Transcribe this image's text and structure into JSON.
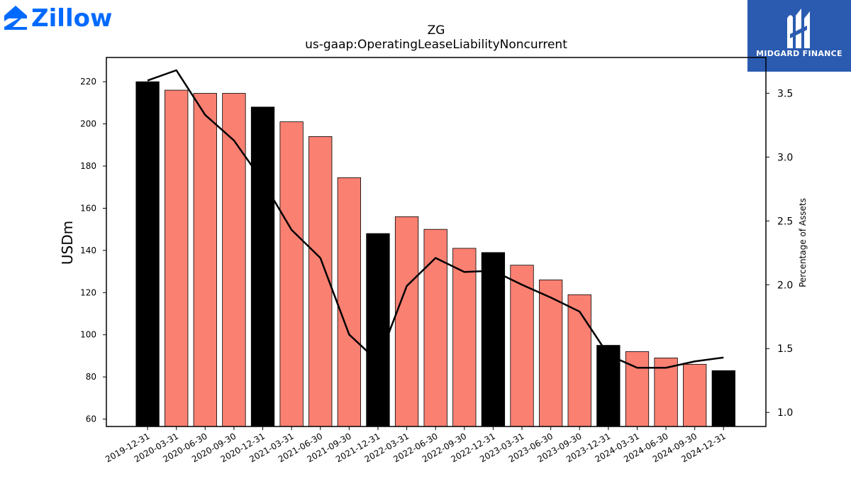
{
  "branding": {
    "left_logo": "Zillow",
    "right_logo": "MIDGARD FINANCE",
    "colors": {
      "zillow_blue": "#006aff",
      "midgard_blue": "#2a5bb0"
    }
  },
  "chart_data": {
    "type": "bar",
    "title": "ZG",
    "subtitle": "us-gaap:OperatingLeaseLiabilityNoncurrent",
    "ylabel": "USDm",
    "y2label": "Percentage of Assets",
    "ylim": [
      56.5,
      231.5
    ],
    "y2lim": [
      0.89,
      3.78
    ],
    "yticks": [
      60,
      80,
      100,
      120,
      140,
      160,
      180,
      200,
      220
    ],
    "y2ticks": [
      "1.0",
      "1.5",
      "2.0",
      "2.5",
      "3.0",
      "3.5"
    ],
    "categories": [
      "2019-12-31",
      "2020-03-31",
      "2020-06-30",
      "2020-09-30",
      "2020-12-31",
      "2021-03-31",
      "2021-06-30",
      "2021-09-30",
      "2021-12-31",
      "2022-03-31",
      "2022-06-30",
      "2022-09-30",
      "2022-12-31",
      "2023-03-31",
      "2023-06-30",
      "2023-09-30",
      "2023-12-31",
      "2024-03-31",
      "2024-06-30",
      "2024-09-30",
      "2024-12-31"
    ],
    "series": [
      {
        "type": "bar",
        "values": [
          220,
          216,
          214.5,
          214.5,
          208,
          201,
          194,
          174.5,
          148,
          156,
          150,
          141,
          139,
          133,
          126,
          119,
          95,
          92,
          89,
          86,
          83
        ],
        "year_end_color": "#000000",
        "quarter_color": "#fa8072"
      },
      {
        "type": "line",
        "axis": "right",
        "color": "#000000",
        "values": [
          3.6,
          3.68,
          3.33,
          3.13,
          2.81,
          2.43,
          2.21,
          1.61,
          1.4,
          1.99,
          2.21,
          2.1,
          2.11,
          2.0,
          1.9,
          1.79,
          1.45,
          1.35,
          1.35,
          1.4,
          1.43
        ]
      }
    ],
    "grid": false
  }
}
